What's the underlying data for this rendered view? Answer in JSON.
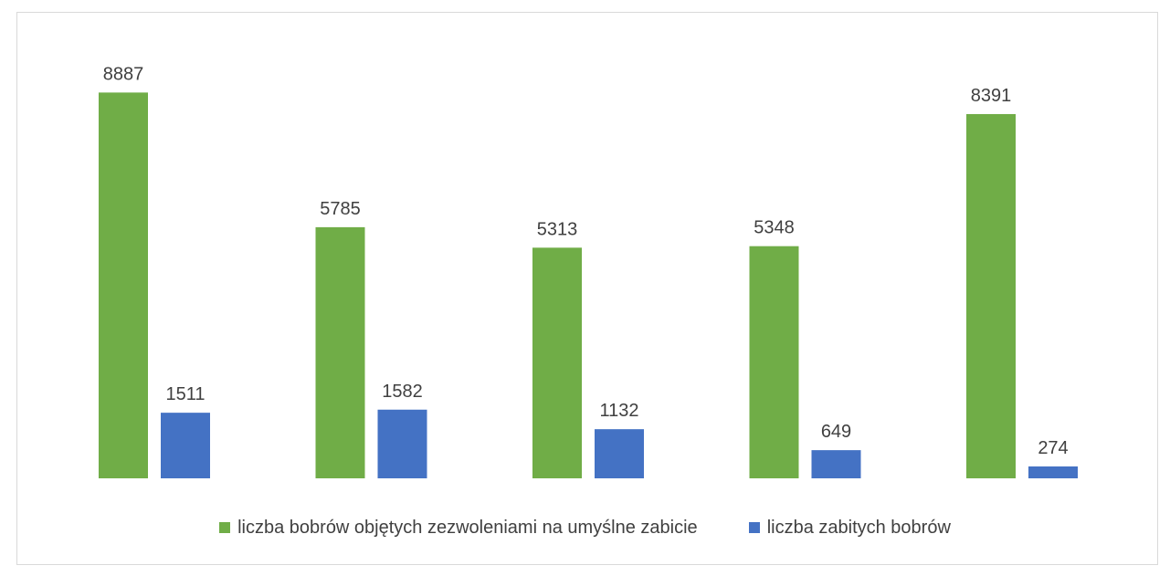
{
  "chart_data": {
    "type": "bar",
    "categories": [
      "",
      "",
      "",
      "",
      ""
    ],
    "series": [
      {
        "name": "liczba bobrów objętych zezwoleniami na umyślne zabicie",
        "color": "#70ad47",
        "values": [
          8887,
          5785,
          5313,
          5348,
          8391
        ]
      },
      {
        "name": "liczba zabitych bobrów",
        "color": "#4472c4",
        "values": [
          1511,
          1582,
          1132,
          649,
          274
        ]
      }
    ],
    "title": "",
    "xlabel": "",
    "ylabel": "",
    "ylim": [
      0,
      9000
    ],
    "grid": false,
    "data_labels": true,
    "legend_position": "bottom"
  }
}
